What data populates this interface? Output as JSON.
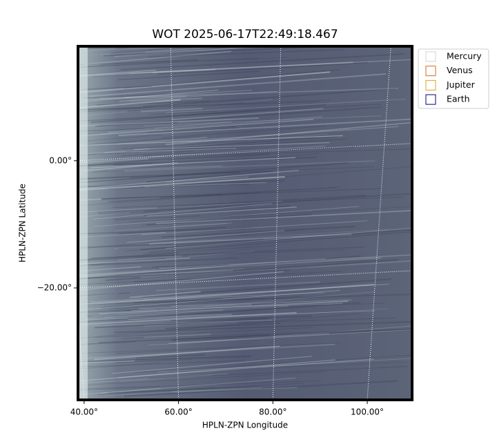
{
  "chart_data": {
    "type": "image",
    "title": "WOT 2025-06-17T22:49:18.467",
    "x_label": "HPLN-ZPN Longitude",
    "y_label": "HPLN-ZPN Latitude",
    "xlim": [
      38.7,
      109.5
    ],
    "ylim": [
      -37.6,
      18.0
    ],
    "xticks": [
      {
        "value": 40,
        "label": "40.00°"
      },
      {
        "value": 60,
        "label": "60.00°"
      },
      {
        "value": 80,
        "label": "80.00°"
      },
      {
        "value": 100,
        "label": "100.00°"
      }
    ],
    "yticks": [
      {
        "value": 0,
        "label": "0.00°"
      },
      {
        "value": -20,
        "label": "−20.00°"
      }
    ],
    "grid": true,
    "legend": "upper right",
    "series": [
      {
        "name": "Mercury",
        "color": "#d3d3d3"
      },
      {
        "name": "Venus",
        "color": "#d2691e"
      },
      {
        "name": "Jupiter",
        "color": "#daa520"
      },
      {
        "name": "Earth",
        "color": "#000080"
      }
    ]
  }
}
